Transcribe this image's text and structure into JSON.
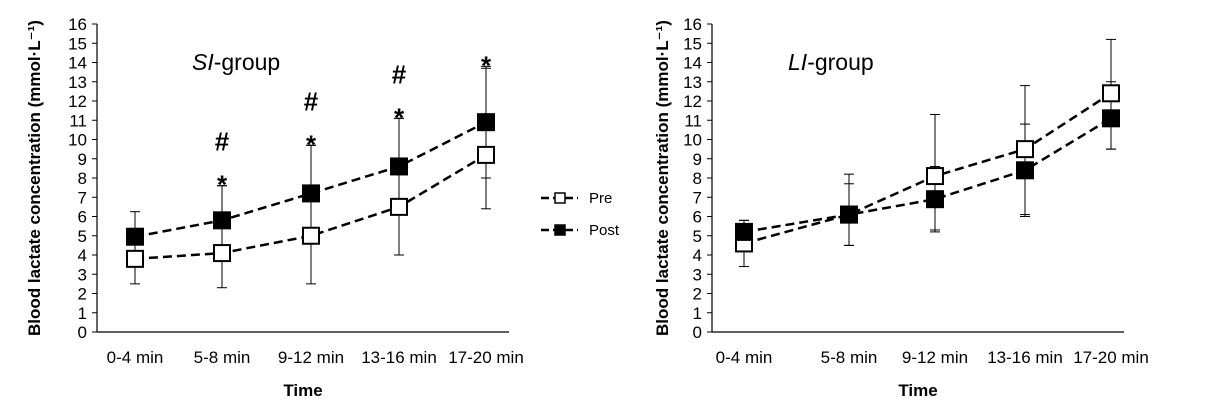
{
  "chart_data": [
    {
      "type": "line",
      "title": "",
      "group_label": {
        "italic": "SI",
        "rest": "-group"
      },
      "xlabel": "Time",
      "ylabel": "Blood lactate concentration (mmol·L⁻¹)",
      "ylim": [
        0,
        16
      ],
      "yticks": [
        0,
        1,
        2,
        3,
        4,
        5,
        6,
        7,
        8,
        9,
        10,
        11,
        12,
        13,
        14,
        15,
        16
      ],
      "categories": [
        "0-4 min",
        "5-8 min",
        "9-12 min",
        "13-16 min",
        "17-20 min"
      ],
      "series": [
        {
          "name": "Pre",
          "marker": "open-square",
          "color": "#000000",
          "values": [
            3.8,
            4.1,
            5.0,
            6.5,
            9.2
          ],
          "error_upper": [
            1.3,
            3.5,
            4.7,
            4.6,
            4.5
          ],
          "error_lower": [
            1.3,
            1.8,
            2.5,
            2.5,
            2.8
          ]
        },
        {
          "name": "Post",
          "marker": "filled-square",
          "color": "#000000",
          "values": [
            4.95,
            5.8,
            7.2,
            8.6,
            10.9
          ],
          "error_upper": [
            1.3,
            1.8,
            2.5,
            2.5,
            2.9
          ],
          "error_lower": [
            1.3,
            1.8,
            2.5,
            2.5,
            2.9
          ]
        }
      ],
      "annotations": [
        {
          "category": "5-8 min",
          "marks": [
            "#",
            "*"
          ]
        },
        {
          "category": "9-12 min",
          "marks": [
            "#",
            "*"
          ]
        },
        {
          "category": "13-16 min",
          "marks": [
            "#",
            "*"
          ]
        },
        {
          "category": "17-20 min",
          "marks": [
            "*"
          ]
        }
      ],
      "grid": false,
      "legend": "right"
    },
    {
      "type": "line",
      "title": "",
      "group_label": {
        "italic": "LI",
        "rest": "-group"
      },
      "xlabel": "Time",
      "ylabel": "Blood lactate concentration (mmol·L⁻¹)",
      "ylim": [
        0,
        16
      ],
      "yticks": [
        0,
        1,
        2,
        3,
        4,
        5,
        6,
        7,
        8,
        9,
        10,
        11,
        12,
        13,
        14,
        15,
        16
      ],
      "categories": [
        "0-4 min",
        "5-8 min",
        "9-12 min",
        "13-16 min",
        "17-20 min"
      ],
      "series": [
        {
          "name": "Pre",
          "marker": "open-square",
          "color": "#000000",
          "values": [
            4.6,
            6.1,
            8.1,
            9.5,
            12.4
          ],
          "error_upper": [
            1.2,
            2.1,
            3.2,
            3.3,
            2.8
          ],
          "error_lower": [
            1.2,
            1.6,
            2.8,
            3.4,
            2.9
          ]
        },
        {
          "name": "Post",
          "marker": "filled-square",
          "color": "#000000",
          "values": [
            5.2,
            6.1,
            6.9,
            8.4,
            11.1
          ],
          "error_upper": [
            0.6,
            1.6,
            1.7,
            2.4,
            1.9
          ],
          "error_lower": [
            0.6,
            1.6,
            1.7,
            2.4,
            1.6
          ]
        }
      ],
      "annotations": [],
      "grid": false,
      "legend": "none"
    }
  ]
}
